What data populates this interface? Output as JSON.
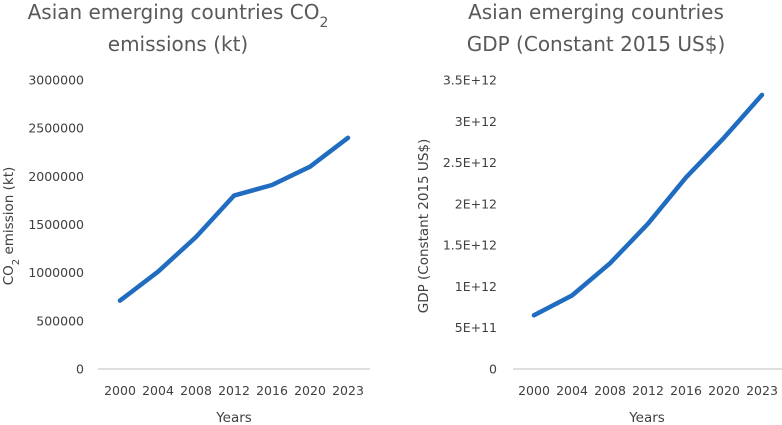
{
  "chart_data": [
    {
      "type": "line",
      "title_line1": "Asian emerging countries CO",
      "title_sub": "2",
      "title_line2": "emissions (kt)",
      "ylabel_pre": "CO",
      "ylabel_sub": "2",
      "ylabel_post": " emission (kt)",
      "xlabel": "Years",
      "x": [
        2000,
        2004,
        2008,
        2012,
        2016,
        2020,
        2023
      ],
      "x_ticks": [
        "2000",
        "2004",
        "2008",
        "2012",
        "2016",
        "2020",
        "2023"
      ],
      "values": [
        710000,
        1010000,
        1370000,
        1800000,
        1910000,
        2100000,
        2400000
      ],
      "ylim": [
        0,
        3000000
      ],
      "y_ticks": [
        "0",
        "500000",
        "1000000",
        "1500000",
        "2000000",
        "2500000",
        "3000000"
      ],
      "series_color": "#1f6cc1"
    },
    {
      "type": "line",
      "title_line1": "Asian emerging countries",
      "title_line2": "GDP (Constant 2015 US$)",
      "ylabel": "GDP (Constant 2015 US$)",
      "xlabel": "Years",
      "x": [
        2000,
        2004,
        2008,
        2012,
        2016,
        2020,
        2023
      ],
      "x_ticks": [
        "2000",
        "2004",
        "2008",
        "2012",
        "2016",
        "2020",
        "2023"
      ],
      "values": [
        650000000000,
        890000000000,
        1280000000000,
        1760000000000,
        2320000000000,
        2800000000000,
        3320000000000
      ],
      "ylim": [
        0,
        3500000000000
      ],
      "y_ticks": [
        "0",
        "5E+11",
        "1E+12",
        "1.5E+12",
        "2E+12",
        "2.5E+12",
        "3E+12",
        "3.5E+12"
      ],
      "series_color": "#1f6cc1"
    }
  ]
}
